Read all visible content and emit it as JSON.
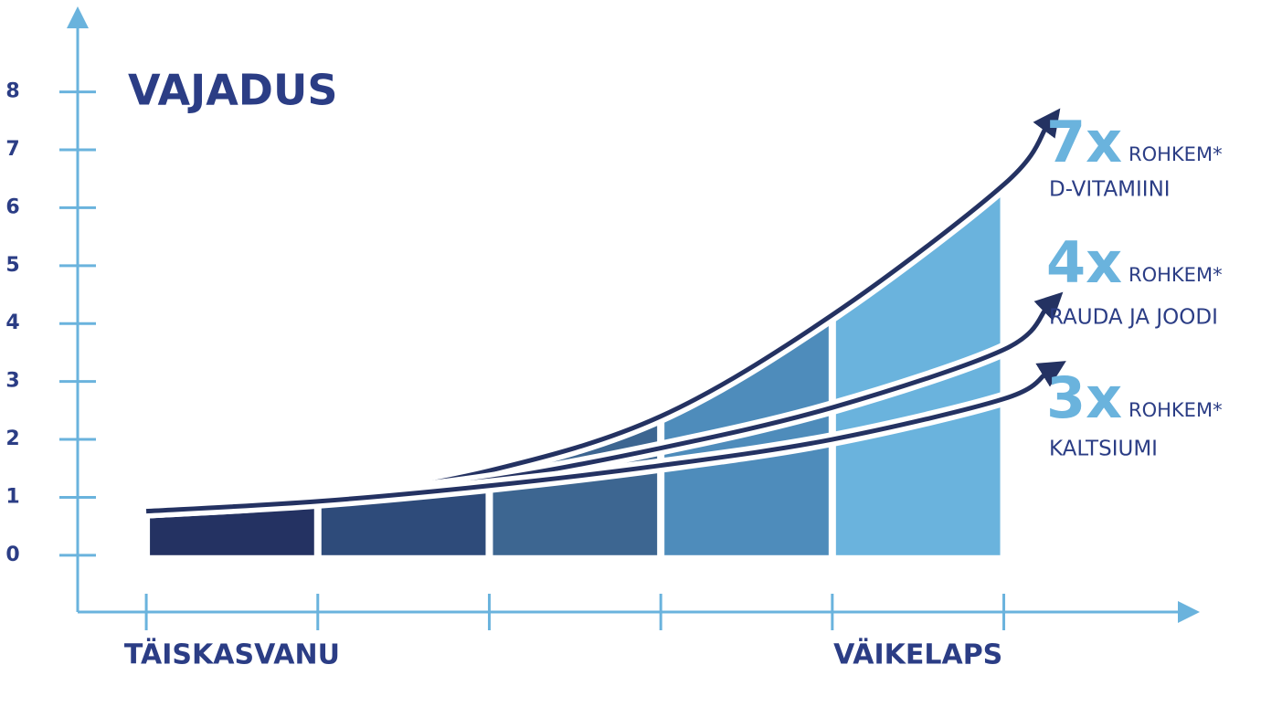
{
  "chart_data": {
    "type": "line",
    "title": "VAJADUS",
    "categories": [
      "TÄISKASVANU",
      null,
      null,
      null,
      "VÄIKELAPS"
    ],
    "band_colors": [
      "#243262",
      "#2e4b7a",
      "#3d6691",
      "#4e8cbb",
      "#6ab3dd"
    ],
    "x": [
      0,
      1,
      2,
      3,
      4,
      5,
      5.25
    ],
    "xlim": [
      -0.4,
      6.1
    ],
    "xticks": [
      0,
      1,
      2,
      3,
      4,
      5
    ],
    "ylim": [
      -0.98,
      9.35
    ],
    "yticks": [
      0,
      1,
      2,
      3,
      4,
      5,
      6,
      7,
      8
    ],
    "axis_color": "#6ab3dd",
    "series": [
      {
        "name": "D-VITAMIINI",
        "multiplier": "7x",
        "note": "ROHKEM*",
        "color": "#243262",
        "values": [
          0.76,
          0.96,
          1.46,
          2.4,
          4.15,
          6.4,
          7.4
        ]
      },
      {
        "name": "RAUDA JA JOODI",
        "multiplier": "4x",
        "note": "ROHKEM*",
        "color": "#243262",
        "values": [
          0.76,
          0.96,
          1.3,
          1.85,
          2.55,
          3.55,
          4.27
        ]
      },
      {
        "name": "KALTSIUMI",
        "multiplier": "3x",
        "note": "ROHKEM*",
        "color": "#243262",
        "values": [
          0.76,
          0.93,
          1.2,
          1.55,
          2.0,
          2.7,
          3.15
        ]
      }
    ]
  }
}
